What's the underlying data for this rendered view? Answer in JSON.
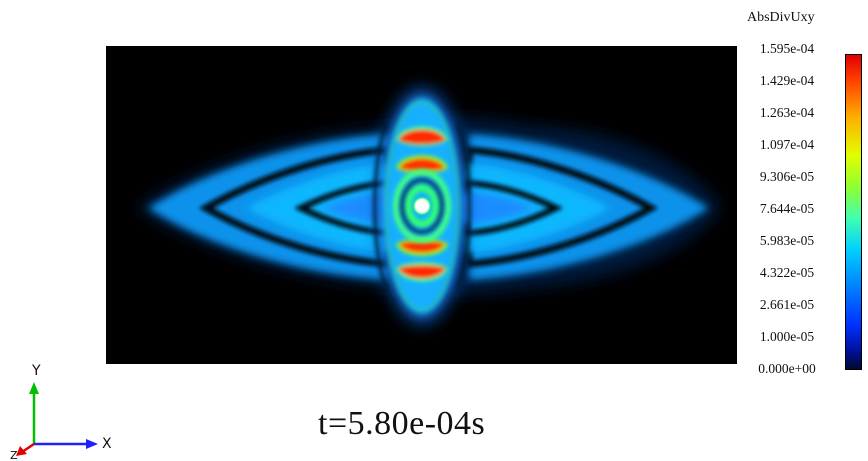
{
  "legend": {
    "title": "AbsDivUxy",
    "ticks": [
      "1.595e-04",
      "1.429e-04",
      "1.263e-04",
      "1.097e-04",
      "9.306e-05",
      "7.644e-05",
      "5.983e-05",
      "4.322e-05",
      "2.661e-05",
      "1.000e-05",
      "0.000e+00"
    ]
  },
  "time_label": "t=5.80e-04s",
  "axes": {
    "x": "X",
    "y": "Y",
    "z": "Z"
  }
}
